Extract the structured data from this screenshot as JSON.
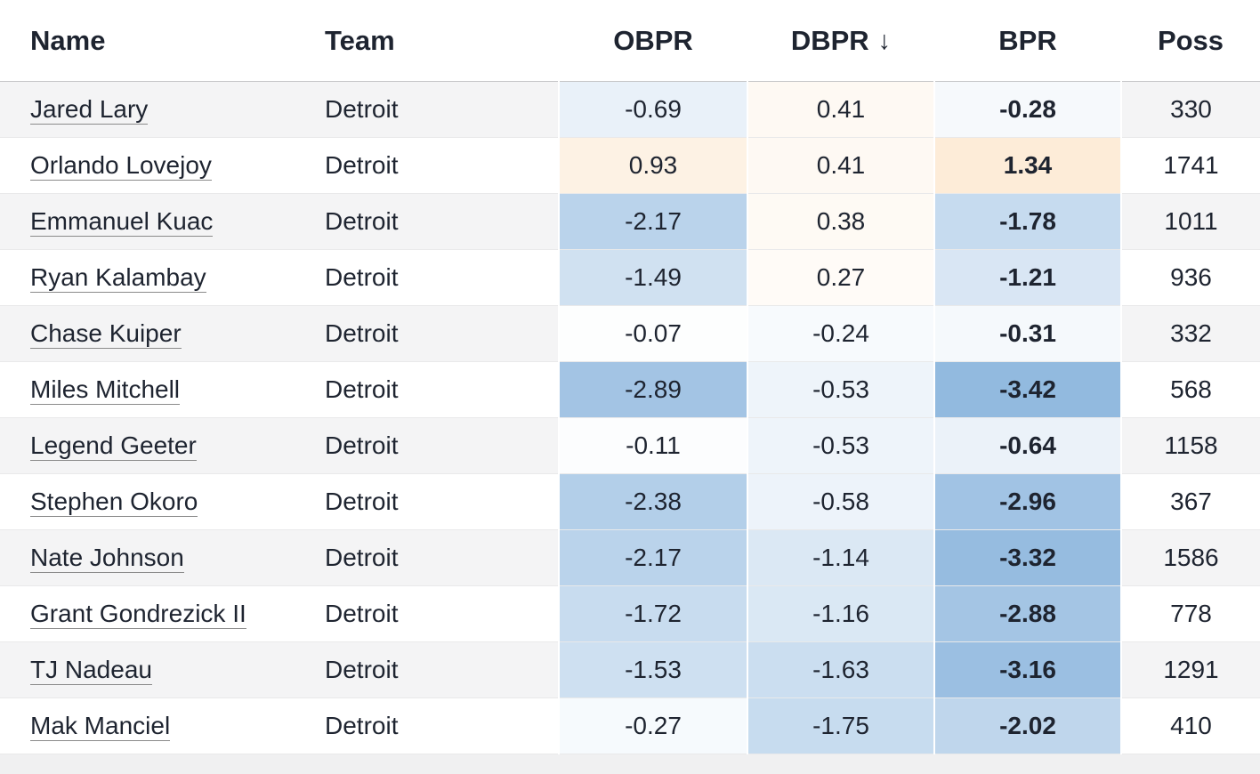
{
  "table": {
    "columns": [
      {
        "key": "name",
        "label": "Name",
        "align": "left"
      },
      {
        "key": "team",
        "label": "Team",
        "align": "left"
      },
      {
        "key": "obpr",
        "label": "OBPR",
        "align": "center",
        "heatmap": true
      },
      {
        "key": "dbpr",
        "label": "DBPR",
        "align": "center",
        "heatmap": true,
        "sorted": "desc",
        "sort_indicator": "↓"
      },
      {
        "key": "bpr",
        "label": "BPR",
        "align": "center",
        "heatmap": true,
        "bold": true
      },
      {
        "key": "poss",
        "label": "Poss",
        "align": "center"
      }
    ],
    "rows": [
      {
        "name": "Jared Lary",
        "team": "Detroit",
        "obpr": -0.69,
        "dbpr": 0.41,
        "bpr": -0.28,
        "poss": 330
      },
      {
        "name": "Orlando Lovejoy",
        "team": "Detroit",
        "obpr": 0.93,
        "dbpr": 0.41,
        "bpr": 1.34,
        "poss": 1741
      },
      {
        "name": "Emmanuel Kuac",
        "team": "Detroit",
        "obpr": -2.17,
        "dbpr": 0.38,
        "bpr": -1.78,
        "poss": 1011
      },
      {
        "name": "Ryan Kalambay",
        "team": "Detroit",
        "obpr": -1.49,
        "dbpr": 0.27,
        "bpr": -1.21,
        "poss": 936
      },
      {
        "name": "Chase Kuiper",
        "team": "Detroit",
        "obpr": -0.07,
        "dbpr": -0.24,
        "bpr": -0.31,
        "poss": 332
      },
      {
        "name": "Miles Mitchell",
        "team": "Detroit",
        "obpr": -2.89,
        "dbpr": -0.53,
        "bpr": -3.42,
        "poss": 568
      },
      {
        "name": "Legend Geeter",
        "team": "Detroit",
        "obpr": -0.11,
        "dbpr": -0.53,
        "bpr": -0.64,
        "poss": 1158
      },
      {
        "name": "Stephen Okoro",
        "team": "Detroit",
        "obpr": -2.38,
        "dbpr": -0.58,
        "bpr": -2.96,
        "poss": 367
      },
      {
        "name": "Nate Johnson",
        "team": "Detroit",
        "obpr": -2.17,
        "dbpr": -1.14,
        "bpr": -3.32,
        "poss": 1586
      },
      {
        "name": "Grant Gondrezick II",
        "team": "Detroit",
        "obpr": -1.72,
        "dbpr": -1.16,
        "bpr": -2.88,
        "poss": 778
      },
      {
        "name": "TJ Nadeau",
        "team": "Detroit",
        "obpr": -1.53,
        "dbpr": -1.63,
        "bpr": -3.16,
        "poss": 1291
      },
      {
        "name": "Mak Manciel",
        "team": "Detroit",
        "obpr": -0.27,
        "dbpr": -1.75,
        "bpr": -2.02,
        "poss": 410
      }
    ]
  },
  "heatmap": {
    "negative_color": "#80aeda",
    "positive_color": "#f8c68c",
    "neutral_color": "#ffffff",
    "max_abs": 4
  },
  "colors": {
    "text": "#1e2430",
    "row_stripe": "#f4f4f5",
    "row_border": "#e9e9ea",
    "header_border": "#c6c6c8",
    "page_background": "#f0f0f1",
    "link_underline": "#8b8b8b"
  }
}
